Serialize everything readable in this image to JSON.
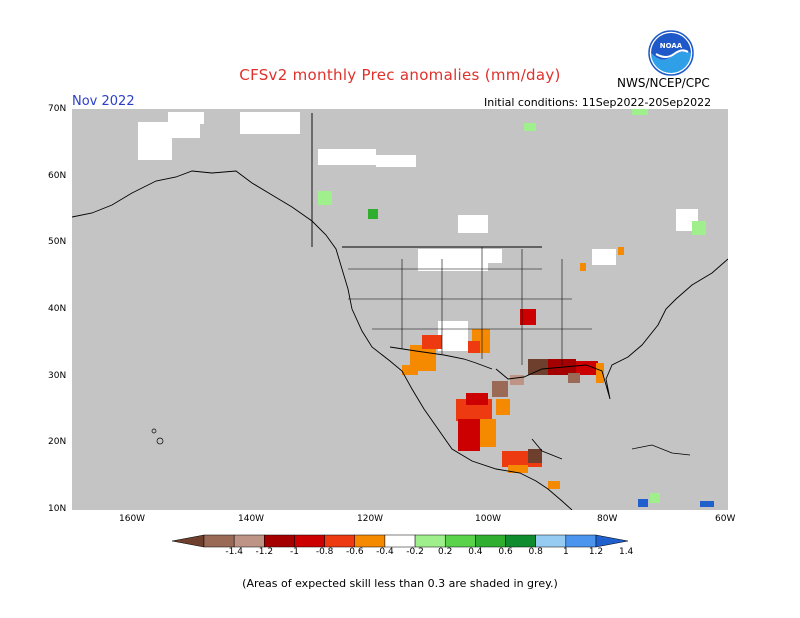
{
  "header": {
    "title": "CFSv2 monthly Prec anomalies (mm/day)",
    "agency": "NWS/NCEP/CPC",
    "month": "Nov 2022",
    "initial_conditions": "Initial conditions: 11Sep2022-20Sep2022",
    "logo_text": "NOAA"
  },
  "axes": {
    "lat_labels": [
      "70N",
      "60N",
      "50N",
      "40N",
      "30N",
      "20N",
      "10N"
    ],
    "lon_labels": [
      "160W",
      "140W",
      "120W",
      "100W",
      "80W",
      "60W"
    ]
  },
  "colorbar": {
    "labels": [
      "-1.4",
      "-1.2",
      "-1",
      "-0.8",
      "-0.6",
      "-0.4",
      "-0.2",
      "0.2",
      "0.4",
      "0.6",
      "0.8",
      "1",
      "1.2",
      "1.4"
    ],
    "colors": [
      "#6e3f2c",
      "#9a6a57",
      "#bd9485",
      "#a50000",
      "#cc0000",
      "#ee3a10",
      "#f58a00",
      "#ffffff",
      "#9fef8c",
      "#5ad24a",
      "#2fae2f",
      "#0f8c2d",
      "#96ccf2",
      "#4b95ee",
      "#1f60cc"
    ]
  },
  "map": {
    "land_color": "#c4c4c4",
    "colors": {
      "dry_strong": "#6e3f2c",
      "dry_brown": "#9a6a57",
      "dry_red": "#a50000",
      "dry_redm": "#cc0000",
      "dry_orange_red": "#ee3a10",
      "dry_orange": "#f58a00",
      "wet_light": "#9fef8c",
      "wet_green": "#2fae2f",
      "wet_blue": "#1f60cc",
      "neutral": "#ffffff"
    }
  },
  "footnote": "(Areas of expected skill less than 0.3 are shaded in grey.)"
}
